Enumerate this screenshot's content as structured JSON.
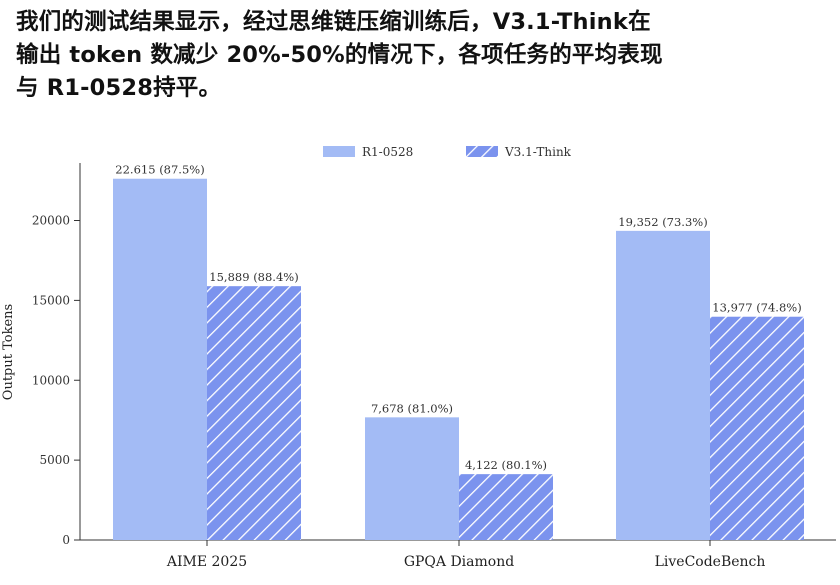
{
  "headline": {
    "line1": "我们的测试结果显示，经过思维链压缩训练后，V3.1-Think在",
    "line2": "输出 token 数减少 20%-50%的情况下，各项任务的平均表现",
    "line3": "与 R1-0528持平。"
  },
  "chart_data": {
    "type": "bar",
    "title": "",
    "xlabel": "",
    "ylabel": "Output Tokens",
    "ylim": [
      0,
      24000
    ],
    "yticks": [
      0,
      5000,
      10000,
      15000,
      20000
    ],
    "yticklabels": [
      "0",
      "5000",
      "10000",
      "15000",
      "20000"
    ],
    "categories": [
      "AIME 2025",
      "GPQA Diamond",
      "LiveCodeBench"
    ],
    "legend_position": "top-center",
    "grid": false,
    "series": [
      {
        "name": "R1-0528",
        "values": [
          22615,
          7678,
          19352
        ],
        "labels": [
          "22.615 (87.5%)",
          "7,678 (81.0%)",
          "19,352 (73.3%)"
        ],
        "color": "#a3bbf5",
        "pattern": "solid"
      },
      {
        "name": "V3.1-Think",
        "values": [
          15889,
          4122,
          13977
        ],
        "labels": [
          "15,889 (88.4%)",
          "4,122 (80.1%)",
          "13,977 (74.8%)"
        ],
        "color": "#7189ec",
        "pattern": "hatched"
      }
    ]
  }
}
